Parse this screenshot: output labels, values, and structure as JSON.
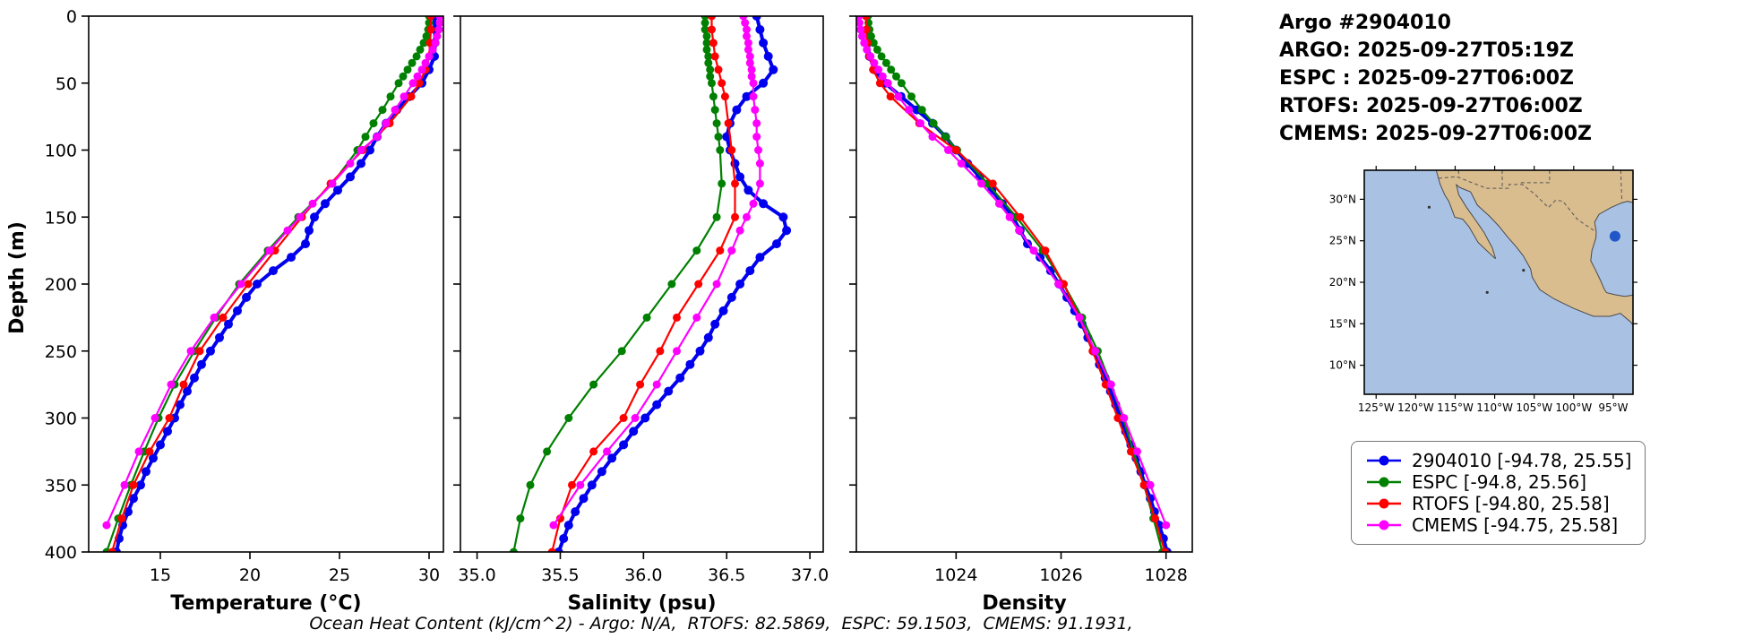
{
  "header": {
    "title": "Argo #2904010",
    "lines": [
      "ARGO: 2025-09-27T05:19Z",
      "ESPC : 2025-09-27T06:00Z",
      "RTOFS: 2025-09-27T06:00Z",
      "CMEMS: 2025-09-27T06:00Z"
    ]
  },
  "footer": "Ocean Heat Content (kJ/cm^2) - Argo: N/A,  RTOFS: 82.5869,  ESPC: 59.1503,  CMEMS: 91.1931,",
  "legend": [
    {
      "label": "2904010 [-94.78, 25.55]",
      "color": "#0000ee"
    },
    {
      "label": "ESPC [-94.8, 25.56]",
      "color": "#008000"
    },
    {
      "label": "RTOFS [-94.80, 25.58]",
      "color": "#ff0000"
    },
    {
      "label": "CMEMS [-94.75, 25.58]",
      "color": "#ff00ff"
    }
  ],
  "map": {
    "land_color": "#d9bd8f",
    "ocean_color": "#a9c2e4",
    "float": {
      "lon": -94.78,
      "lat": 25.55,
      "color": "#2156c8"
    },
    "lat_ticks": [
      {
        "value": 30,
        "label": "30°N"
      },
      {
        "value": 25,
        "label": "25°N"
      },
      {
        "value": 20,
        "label": "20°N"
      },
      {
        "value": 15,
        "label": "15°N"
      },
      {
        "value": 10,
        "label": "10°N"
      }
    ],
    "lon_ticks": [
      {
        "value": -125,
        "label": "125°W"
      },
      {
        "value": -120,
        "label": "120°W"
      },
      {
        "value": -115,
        "label": "115°W"
      },
      {
        "value": -110,
        "label": "110°W"
      },
      {
        "value": -105,
        "label": "105°W"
      },
      {
        "value": -100,
        "label": "100°W"
      },
      {
        "value": -95,
        "label": "95°W"
      }
    ]
  },
  "chart_data": {
    "type": "line",
    "ylabel": "Depth (m)",
    "ylim": [
      0,
      400
    ],
    "yticks": [
      0,
      50,
      100,
      150,
      200,
      250,
      300,
      350,
      400
    ],
    "panels": [
      {
        "id": "temperature",
        "xlabel": "Temperature (°C)",
        "xlim": [
          11,
          30.8
        ],
        "xticks": [
          15,
          20,
          25,
          30
        ],
        "xtick_labels": [
          "15",
          "20",
          "25",
          "30"
        ]
      },
      {
        "id": "salinity",
        "xlabel": "Salinity (psu)",
        "xlim": [
          34.9,
          37.08
        ],
        "xticks": [
          35.0,
          35.5,
          36.0,
          36.5,
          37.0
        ],
        "xtick_labels": [
          "35.0",
          "35.5",
          "36.0",
          "36.5",
          "37.0"
        ]
      },
      {
        "id": "density",
        "xlabel": "Density",
        "xlim": [
          1022.1,
          1028.5
        ],
        "xticks": [
          1024,
          1026,
          1028
        ],
        "xtick_labels": [
          "1024",
          "1026",
          "1028"
        ]
      }
    ],
    "series": [
      {
        "name": "2904010",
        "color": "#0000ee",
        "marker_radius": 5,
        "line_width": 4,
        "depth": [
          0,
          10,
          20,
          30,
          40,
          50,
          60,
          70,
          80,
          90,
          100,
          110,
          120,
          130,
          140,
          150,
          160,
          170,
          180,
          190,
          200,
          210,
          220,
          230,
          240,
          250,
          260,
          270,
          280,
          290,
          300,
          310,
          320,
          330,
          340,
          350,
          360,
          370,
          380,
          390,
          400
        ],
        "values": {
          "temperature": [
            30.3,
            30.32,
            30.33,
            30.3,
            30.0,
            29.6,
            28.9,
            28.2,
            27.6,
            27.1,
            26.7,
            26.2,
            25.6,
            24.9,
            24.2,
            23.6,
            23.3,
            23.1,
            22.3,
            21.3,
            20.4,
            19.8,
            19.3,
            18.8,
            18.3,
            17.8,
            17.3,
            16.9,
            16.5,
            16.1,
            15.8,
            15.4,
            15.0,
            14.6,
            14.2,
            13.9,
            13.5,
            13.2,
            12.9,
            12.7,
            12.55
          ],
          "salinity": [
            36.68,
            36.7,
            36.72,
            36.75,
            36.78,
            36.72,
            36.62,
            36.56,
            36.52,
            36.5,
            36.52,
            36.55,
            36.58,
            36.63,
            36.72,
            36.84,
            36.86,
            36.8,
            36.7,
            36.64,
            36.58,
            36.53,
            36.48,
            36.43,
            36.39,
            36.34,
            36.28,
            36.22,
            36.15,
            36.08,
            36.01,
            35.94,
            35.88,
            35.81,
            35.75,
            35.69,
            35.64,
            35.59,
            35.55,
            35.52,
            35.49
          ],
          "density": [
            1022.3,
            1022.31,
            1022.32,
            1022.35,
            1022.45,
            1022.65,
            1022.95,
            1023.25,
            1023.55,
            1023.8,
            1024.0,
            1024.22,
            1024.45,
            1024.68,
            1024.88,
            1025.08,
            1025.22,
            1025.36,
            1025.6,
            1025.8,
            1025.96,
            1026.11,
            1026.26,
            1026.4,
            1026.51,
            1026.62,
            1026.73,
            1026.84,
            1026.94,
            1027.04,
            1027.13,
            1027.23,
            1027.33,
            1027.43,
            1027.52,
            1027.6,
            1027.7,
            1027.78,
            1027.87,
            1027.95,
            1028.02
          ]
        }
      },
      {
        "name": "ESPC",
        "color": "#008000",
        "marker_radius": 4.5,
        "line_width": 2.2,
        "depth": [
          0,
          5,
          10,
          15,
          20,
          25,
          30,
          35,
          40,
          45,
          50,
          60,
          70,
          80,
          90,
          100,
          125,
          150,
          175,
          200,
          225,
          250,
          275,
          300,
          325,
          350,
          375,
          400
        ],
        "values": {
          "temperature": [
            30.0,
            30.0,
            29.95,
            29.85,
            29.7,
            29.5,
            29.3,
            29.05,
            28.8,
            28.55,
            28.3,
            27.85,
            27.4,
            26.9,
            26.45,
            26.0,
            24.6,
            22.7,
            21.0,
            19.4,
            18.1,
            16.9,
            15.8,
            14.9,
            14.1,
            13.35,
            12.65,
            12.0
          ],
          "salinity": [
            36.37,
            36.37,
            36.37,
            36.38,
            36.38,
            36.38,
            36.39,
            36.39,
            36.4,
            36.4,
            36.41,
            36.42,
            36.43,
            36.44,
            36.45,
            36.46,
            36.47,
            36.44,
            36.32,
            36.17,
            36.02,
            35.87,
            35.7,
            35.55,
            35.42,
            35.32,
            35.26,
            35.22
          ],
          "density": [
            1022.32,
            1022.33,
            1022.35,
            1022.38,
            1022.43,
            1022.5,
            1022.58,
            1022.67,
            1022.76,
            1022.86,
            1022.96,
            1023.15,
            1023.35,
            1023.57,
            1023.8,
            1024.02,
            1024.6,
            1025.15,
            1025.65,
            1026.05,
            1026.4,
            1026.7,
            1026.95,
            1027.18,
            1027.38,
            1027.58,
            1027.76,
            1027.93
          ]
        }
      },
      {
        "name": "RTOFS",
        "color": "#ff0000",
        "marker_radius": 4.5,
        "line_width": 2.2,
        "depth": [
          0,
          10,
          20,
          30,
          40,
          50,
          60,
          80,
          100,
          125,
          150,
          175,
          200,
          225,
          250,
          275,
          300,
          325,
          350,
          375,
          400
        ],
        "values": {
          "temperature": [
            30.1,
            30.1,
            30.05,
            30.0,
            29.8,
            29.45,
            29.0,
            27.8,
            26.3,
            24.5,
            22.9,
            21.4,
            19.9,
            18.5,
            17.2,
            16.3,
            15.5,
            14.4,
            13.5,
            12.85,
            12.3
          ],
          "salinity": [
            36.41,
            36.41,
            36.42,
            36.43,
            36.45,
            36.47,
            36.49,
            36.51,
            36.53,
            36.55,
            36.55,
            36.46,
            36.33,
            36.2,
            36.1,
            35.98,
            35.88,
            35.7,
            35.57,
            35.5,
            35.45
          ],
          "density": [
            1022.28,
            1022.29,
            1022.31,
            1022.35,
            1022.42,
            1022.55,
            1022.75,
            1023.3,
            1024.0,
            1024.7,
            1025.22,
            1025.7,
            1026.05,
            1026.35,
            1026.6,
            1026.85,
            1027.08,
            1027.33,
            1027.58,
            1027.79,
            1027.98
          ]
        }
      },
      {
        "name": "CMEMS",
        "color": "#ff00ff",
        "marker_radius": 4.5,
        "line_width": 2.2,
        "depth": [
          0,
          5,
          10,
          15,
          20,
          25,
          30,
          35,
          40,
          45,
          50,
          60,
          70,
          80,
          90,
          100,
          110,
          125,
          140,
          150,
          160,
          175,
          200,
          225,
          250,
          275,
          300,
          325,
          350,
          380
        ],
        "values": {
          "temperature": [
            30.6,
            30.6,
            30.55,
            30.45,
            30.35,
            30.2,
            30.0,
            29.8,
            29.6,
            29.35,
            29.1,
            28.6,
            28.1,
            27.6,
            27.1,
            26.2,
            25.6,
            24.6,
            23.5,
            22.8,
            22.1,
            21.1,
            19.5,
            18.0,
            16.7,
            15.6,
            14.7,
            13.8,
            13.0,
            12.0
          ],
          "salinity": [
            36.6,
            36.61,
            36.62,
            36.62,
            36.63,
            36.63,
            36.64,
            36.64,
            36.65,
            36.65,
            36.66,
            36.66,
            36.67,
            36.68,
            36.68,
            36.69,
            36.7,
            36.7,
            36.66,
            36.62,
            36.58,
            36.53,
            36.44,
            36.32,
            36.2,
            36.08,
            35.95,
            35.78,
            35.62,
            35.46
          ],
          "density": [
            1022.15,
            1022.16,
            1022.18,
            1022.21,
            1022.25,
            1022.3,
            1022.37,
            1022.44,
            1022.52,
            1022.6,
            1022.7,
            1022.9,
            1023.1,
            1023.32,
            1023.55,
            1023.85,
            1024.1,
            1024.48,
            1024.82,
            1025.02,
            1025.2,
            1025.48,
            1025.95,
            1026.35,
            1026.65,
            1026.95,
            1027.2,
            1027.45,
            1027.7,
            1028.0
          ]
        }
      }
    ]
  }
}
